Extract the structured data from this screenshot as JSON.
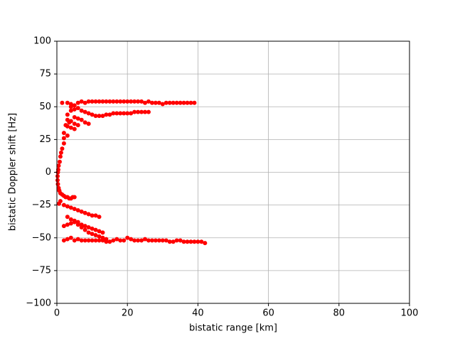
{
  "chart_data": {
    "type": "scatter",
    "x_label": "bistatic range [km]",
    "y_label": "bistatic Doppler shift [Hz]",
    "color": "#ff0000",
    "grid": true,
    "xlim": [
      0,
      100
    ],
    "xticks": [
      0,
      20,
      40,
      60,
      80,
      100
    ],
    "ylim": [
      -100,
      100
    ],
    "yticks": [
      {
        "value": -100,
        "label": "−100"
      },
      {
        "value": -75,
        "label": "−75"
      },
      {
        "value": -50,
        "label": "−50"
      },
      {
        "value": -25,
        "label": "−25"
      },
      0,
      25,
      50,
      75,
      100
    ],
    "x": [
      1.5,
      3,
      4,
      5,
      6,
      7,
      8,
      9,
      10,
      11,
      12,
      13,
      14,
      15,
      16,
      17,
      18,
      19,
      20,
      21,
      22,
      23,
      24,
      25,
      26,
      27,
      28,
      29,
      30,
      31,
      32,
      33,
      34,
      35,
      36,
      37,
      38,
      39,
      12,
      13,
      14,
      15,
      16,
      17,
      18,
      19,
      20,
      21,
      22,
      23,
      24,
      25,
      26,
      4,
      5,
      6,
      7,
      8,
      9,
      10,
      11,
      5,
      6,
      7,
      8,
      9,
      3,
      4,
      5,
      6,
      3,
      4,
      5,
      2,
      3,
      2.5,
      3.5,
      2,
      2,
      3,
      4,
      1.5,
      1.2,
      1,
      0.8,
      0.5,
      0.4,
      0.3,
      0.2,
      0.2,
      0.3,
      0.5,
      0.7,
      1,
      1.5,
      2,
      2.5,
      3,
      3.5,
      4,
      4.5,
      5,
      1,
      0.6,
      2,
      3,
      4,
      5,
      6,
      7,
      8,
      9,
      10,
      11,
      12,
      3,
      4,
      5,
      6,
      7,
      8,
      9,
      10,
      11,
      12,
      13,
      2,
      3,
      4,
      5,
      6,
      7,
      8,
      9,
      10,
      11,
      12,
      13,
      14,
      2,
      3,
      4,
      5,
      6,
      7,
      8,
      9,
      10,
      11,
      12,
      13,
      14,
      15,
      16,
      17,
      18,
      19,
      20,
      21,
      22,
      23,
      24,
      25,
      26,
      27,
      28,
      29,
      30,
      31,
      32,
      33,
      34,
      35,
      36,
      37,
      38,
      39,
      40,
      41,
      42
    ],
    "values": [
      53,
      53,
      52,
      51,
      53,
      54,
      53,
      54,
      54,
      54,
      54,
      54,
      54,
      54,
      54,
      54,
      54,
      54,
      54,
      54,
      54,
      54,
      54,
      53,
      54,
      53,
      53,
      53,
      52,
      53,
      53,
      53,
      53,
      53,
      53,
      53,
      53,
      53,
      43,
      43,
      44,
      44,
      45,
      45,
      45,
      45,
      45,
      45,
      46,
      46,
      46,
      46,
      46,
      50,
      48,
      49,
      47,
      46,
      45,
      44,
      43,
      42,
      41,
      40,
      38,
      37,
      40,
      39,
      37,
      36,
      35,
      34,
      33,
      30,
      28,
      36,
      38,
      26,
      22,
      44,
      47,
      18,
      15,
      12,
      8,
      5,
      2,
      0,
      -3,
      -6,
      -9,
      -12,
      -14,
      -16,
      -17,
      -18,
      -19,
      -19,
      -20,
      -20,
      -19,
      -19,
      -22,
      -24,
      -25,
      -26,
      -27,
      -28,
      -29,
      -30,
      -31,
      -32,
      -33,
      -33,
      -34,
      -34,
      -36,
      -37,
      -38,
      -40,
      -41,
      -42,
      -43,
      -44,
      -45,
      -46,
      -41,
      -40,
      -39,
      -38,
      -40,
      -42,
      -44,
      -46,
      -47,
      -48,
      -49,
      -50,
      -51,
      -52,
      -51,
      -50,
      -52,
      -51,
      -52,
      -52,
      -52,
      -52,
      -52,
      -52,
      -52,
      -53,
      -53,
      -52,
      -51,
      -52,
      -52,
      -50,
      -51,
      -52,
      -52,
      -52,
      -51,
      -52,
      -52,
      -52,
      -52,
      -52,
      -52,
      -53,
      -53,
      -52,
      -52,
      -53,
      -53,
      -53,
      -53,
      -53,
      -53,
      -54
    ]
  }
}
